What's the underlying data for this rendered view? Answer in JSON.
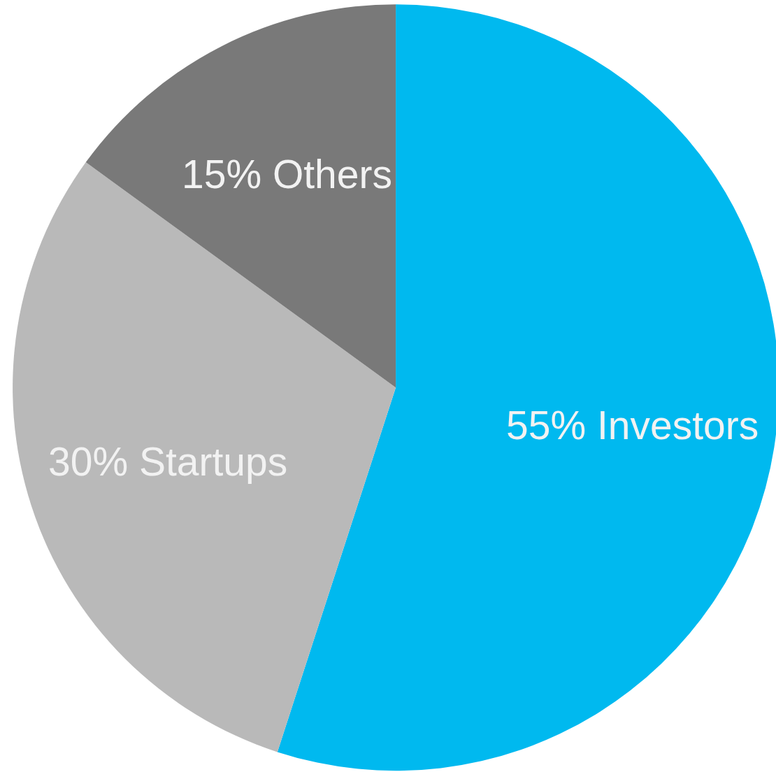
{
  "chart_data": {
    "type": "pie",
    "categories": [
      "Investors",
      "Startups",
      "Others"
    ],
    "values": [
      55,
      30,
      15
    ],
    "colors": [
      "#00b9ef",
      "#b9b9b9",
      "#797979"
    ],
    "value_labels": [
      "55%",
      "30%",
      "15%"
    ]
  }
}
